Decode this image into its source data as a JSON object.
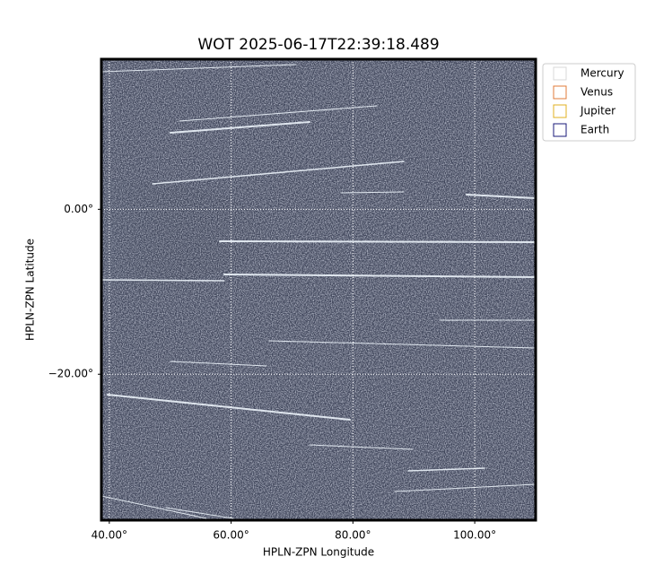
{
  "chart_data": {
    "type": "image",
    "title": "WOT 2025-06-17T22:39:18.489",
    "xlabel": "HPLN-ZPN Longitude",
    "ylabel": "HPLN-ZPN Latitude",
    "xlim": [
      38.7,
      110
    ],
    "ylim": [
      -37.7,
      18.2
    ],
    "xticks": [
      {
        "value": 40,
        "label": "40.00°"
      },
      {
        "value": 60,
        "label": "60.00°"
      },
      {
        "value": 80,
        "label": "80.00°"
      },
      {
        "value": 100,
        "label": "100.00°"
      }
    ],
    "yticks": [
      {
        "value": 0,
        "label": "0.00°"
      },
      {
        "value": -20,
        "label": "−20.00°"
      }
    ],
    "grid": true,
    "legend": "right",
    "series": [
      {
        "name": "Mercury",
        "color": "#d9d9d9"
      },
      {
        "name": "Venus",
        "color": "#e07b39"
      },
      {
        "name": "Jupiter",
        "color": "#e0b020"
      },
      {
        "name": "Earth",
        "color": "#1a1a7a"
      }
    ]
  }
}
